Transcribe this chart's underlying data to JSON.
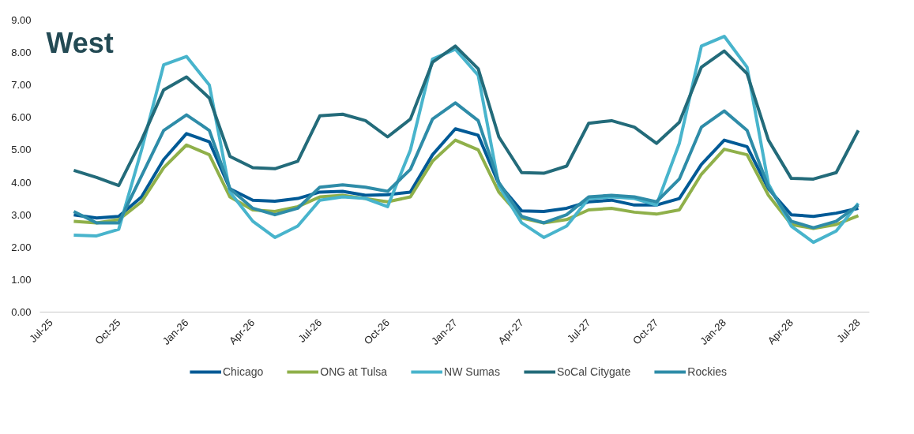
{
  "chart_data": {
    "type": "line",
    "title": "West",
    "x": [
      "2025-08",
      "2025-09",
      "2025-10",
      "2025-11",
      "2025-12",
      "2026-01",
      "2026-02",
      "2026-03",
      "2026-04",
      "2026-05",
      "2026-06",
      "2026-07",
      "2026-08",
      "2026-09",
      "2026-10",
      "2026-11",
      "2026-12",
      "2027-01",
      "2027-02",
      "2027-03",
      "2027-04",
      "2027-05",
      "2027-06",
      "2027-07",
      "2027-08",
      "2027-09",
      "2027-10",
      "2027-11",
      "2027-12",
      "2028-01",
      "2028-02",
      "2028-03",
      "2028-04",
      "2028-05",
      "2028-06",
      "2028-07"
    ],
    "series": [
      {
        "name": "Chicago",
        "color": "#005a96",
        "values": [
          3.0,
          2.9,
          2.95,
          3.55,
          4.7,
          5.5,
          5.25,
          3.8,
          3.45,
          3.42,
          3.5,
          3.7,
          3.72,
          3.6,
          3.62,
          3.7,
          4.85,
          5.65,
          5.45,
          3.95,
          3.12,
          3.1,
          3.2,
          3.4,
          3.45,
          3.3,
          3.3,
          3.5,
          4.55,
          5.3,
          5.1,
          3.8,
          3.0,
          2.95,
          3.05,
          3.2
        ]
      },
      {
        "name": "ONG at Tulsa",
        "color": "#8fb04a",
        "values": [
          2.8,
          2.75,
          2.85,
          3.4,
          4.45,
          5.15,
          4.85,
          3.55,
          3.15,
          3.1,
          3.25,
          3.55,
          3.6,
          3.5,
          3.4,
          3.55,
          4.65,
          5.3,
          5.0,
          3.7,
          2.9,
          2.75,
          2.85,
          3.15,
          3.2,
          3.08,
          3.02,
          3.15,
          4.25,
          5.02,
          4.85,
          3.6,
          2.7,
          2.58,
          2.7,
          2.97
        ]
      },
      {
        "name": "NW Sumas",
        "color": "#48b4cc",
        "values": [
          2.37,
          2.35,
          2.55,
          5.0,
          7.62,
          7.88,
          7.0,
          3.7,
          2.8,
          2.3,
          2.65,
          3.45,
          3.55,
          3.5,
          3.25,
          5.0,
          7.8,
          8.1,
          7.3,
          3.9,
          2.75,
          2.3,
          2.65,
          3.5,
          3.55,
          3.5,
          3.3,
          5.2,
          8.2,
          8.5,
          7.55,
          3.95,
          2.65,
          2.15,
          2.5,
          3.35
        ]
      },
      {
        "name": "SoCal Citygate",
        "color": "#236b7a",
        "values": [
          4.37,
          4.15,
          3.9,
          5.3,
          6.85,
          7.25,
          6.6,
          4.8,
          4.45,
          4.42,
          4.65,
          6.05,
          6.1,
          5.9,
          5.4,
          5.95,
          7.7,
          8.2,
          7.5,
          5.4,
          4.3,
          4.28,
          4.5,
          5.82,
          5.9,
          5.7,
          5.2,
          5.85,
          7.55,
          8.05,
          7.35,
          5.3,
          4.12,
          4.1,
          4.3,
          5.6
        ]
      },
      {
        "name": "Rockies",
        "color": "#2e8ca8",
        "values": [
          3.1,
          2.75,
          2.75,
          4.2,
          5.6,
          6.08,
          5.6,
          3.8,
          3.2,
          3.0,
          3.2,
          3.85,
          3.92,
          3.85,
          3.72,
          4.4,
          5.95,
          6.45,
          5.9,
          4.0,
          2.95,
          2.75,
          3.0,
          3.55,
          3.6,
          3.55,
          3.4,
          4.1,
          5.7,
          6.2,
          5.6,
          3.85,
          2.8,
          2.6,
          2.8,
          3.3
        ]
      }
    ],
    "xlim": [
      "2025-06-16",
      "2028-07-16"
    ],
    "xticks": [
      {
        "value": "2025-07",
        "label": "Jul-25"
      },
      {
        "value": "2025-10",
        "label": "Oct-25"
      },
      {
        "value": "2026-01",
        "label": "Jan-26"
      },
      {
        "value": "2026-04",
        "label": "Apr-26"
      },
      {
        "value": "2026-07",
        "label": "Jul-26"
      },
      {
        "value": "2026-10",
        "label": "Oct-26"
      },
      {
        "value": "2027-01",
        "label": "Jan-27"
      },
      {
        "value": "2027-04",
        "label": "Apr-27"
      },
      {
        "value": "2027-07",
        "label": "Jul-27"
      },
      {
        "value": "2027-10",
        "label": "Oct-27"
      },
      {
        "value": "2028-01",
        "label": "Jan-28"
      },
      {
        "value": "2028-04",
        "label": "Apr-28"
      },
      {
        "value": "2028-07",
        "label": "Jul-28"
      }
    ],
    "ylim": [
      0,
      9
    ],
    "yticks": [
      {
        "value": 0,
        "label": "0.00"
      },
      {
        "value": 1,
        "label": "1.00"
      },
      {
        "value": 2,
        "label": "2.00"
      },
      {
        "value": 3,
        "label": "3.00"
      },
      {
        "value": 4,
        "label": "4.00"
      },
      {
        "value": 5,
        "label": "5.00"
      },
      {
        "value": 6,
        "label": "6.00"
      },
      {
        "value": 7,
        "label": "7.00"
      },
      {
        "value": 8,
        "label": "8.00"
      },
      {
        "value": 9,
        "label": "9.00"
      }
    ],
    "grid": false,
    "legend": "bottom",
    "marker": "none",
    "line_style": "solid"
  }
}
